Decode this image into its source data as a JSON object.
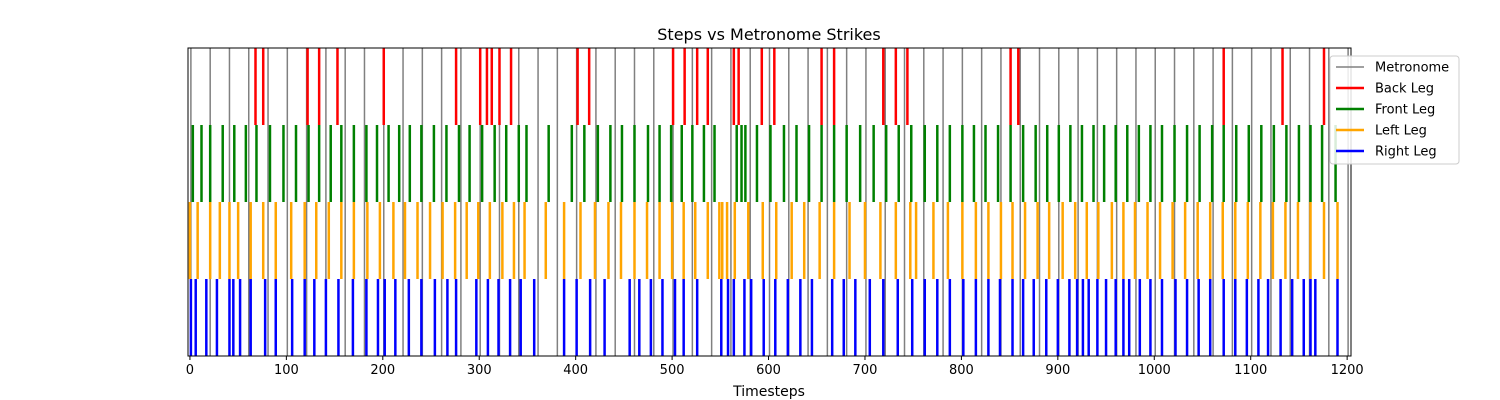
{
  "chart_data": {
    "type": "event-raster",
    "title": "Steps vs Metronome Strikes",
    "xlabel": "Timesteps",
    "ylabel": "",
    "xlim": [
      -2,
      1204
    ],
    "xticks": [
      0,
      100,
      200,
      300,
      400,
      500,
      600,
      700,
      800,
      900,
      1000,
      1100,
      1200
    ],
    "xtick_labels": [
      "0",
      "100",
      "200",
      "300",
      "400",
      "500",
      "600",
      "700",
      "800",
      "900",
      "1000",
      "1100",
      "1200"
    ],
    "grid": false,
    "legend_position": "top-right",
    "series": [
      {
        "name": "Metronome",
        "color": "#808080",
        "band": "full",
        "events": [
          1,
          21,
          41,
          61,
          81,
          101,
          121,
          141,
          161,
          181,
          201,
          221,
          241,
          261,
          281,
          301,
          321,
          341,
          361,
          381,
          401,
          421,
          441,
          461,
          481,
          501,
          521,
          541,
          561,
          581,
          601,
          621,
          641,
          661,
          681,
          701,
          721,
          741,
          761,
          781,
          801,
          821,
          841,
          861,
          881,
          901,
          921,
          941,
          961,
          981,
          1001,
          1021,
          1041,
          1061,
          1081,
          1101,
          1121,
          1141,
          1161,
          1181,
          1201
        ]
      },
      {
        "name": "Back Leg",
        "color": "#ff0000",
        "band": 3,
        "events": [
          68,
          76,
          122,
          134,
          153,
          201,
          276,
          301,
          308,
          313,
          321,
          333,
          402,
          414,
          501,
          513,
          526,
          537,
          564,
          569,
          593,
          606,
          655,
          668,
          719,
          732,
          744,
          851,
          859,
          1072,
          1133,
          1176
        ]
      },
      {
        "name": "Front Leg",
        "color": "#008000",
        "band": 2,
        "events": [
          3,
          12,
          21,
          34,
          46,
          58,
          69,
          83,
          97,
          110,
          123,
          134,
          146,
          157,
          170,
          183,
          194,
          206,
          217,
          228,
          240,
          253,
          266,
          279,
          290,
          303,
          316,
          328,
          341,
          349,
          372,
          396,
          409,
          423,
          436,
          448,
          461,
          475,
          487,
          499,
          510,
          521,
          533,
          544,
          567,
          572,
          576,
          588,
          602,
          616,
          629,
          642,
          655,
          668,
          681,
          695,
          709,
          722,
          735,
          748,
          762,
          775,
          788,
          801,
          813,
          825,
          838,
          851,
          864,
          877,
          889,
          901,
          913,
          925,
          937,
          948,
          960,
          972,
          984,
          996,
          1008,
          1021,
          1034,
          1047,
          1060,
          1072,
          1085,
          1098,
          1111,
          1124,
          1137,
          1150,
          1162,
          1174,
          1188
        ]
      },
      {
        "name": "Left Leg",
        "color": "#ffa500",
        "band": 1,
        "events": [
          0,
          8,
          21,
          31,
          41,
          50,
          63,
          76,
          89,
          105,
          119,
          131,
          144,
          157,
          170,
          184,
          197,
          211,
          223,
          236,
          249,
          262,
          275,
          287,
          299,
          311,
          324,
          336,
          347,
          369,
          388,
          405,
          420,
          434,
          447,
          461,
          474,
          487,
          500,
          512,
          524,
          537,
          549,
          552,
          557,
          565,
          579,
          594,
          608,
          624,
          637,
          653,
          668,
          684,
          700,
          716,
          732,
          747,
          753,
          771,
          786,
          801,
          815,
          828,
          841,
          853,
          866,
          879,
          891,
          905,
          918,
          930,
          942,
          956,
          968,
          980,
          993,
          1006,
          1019,
          1032,
          1045,
          1058,
          1071,
          1084,
          1097,
          1110,
          1123,
          1136,
          1149,
          1162,
          1176,
          1190
        ]
      },
      {
        "name": "Right Leg",
        "color": "#0000ff",
        "band": 0,
        "events": [
          1,
          6,
          17,
          28,
          41,
          45,
          52,
          63,
          78,
          89,
          106,
          119,
          129,
          141,
          154,
          169,
          183,
          195,
          202,
          213,
          227,
          240,
          254,
          267,
          276,
          297,
          309,
          320,
          332,
          343,
          357,
          388,
          401,
          415,
          430,
          456,
          466,
          478,
          490,
          503,
          512,
          526,
          551,
          558,
          564,
          575,
          582,
          595,
          607,
          620,
          633,
          645,
          666,
          678,
          690,
          705,
          719,
          734,
          749,
          762,
          775,
          788,
          802,
          815,
          828,
          840,
          853,
          864,
          875,
          888,
          900,
          912,
          920,
          926,
          932,
          941,
          950,
          960,
          968,
          974,
          985,
          996,
          1008,
          1022,
          1034,
          1046,
          1058,
          1072,
          1084,
          1096,
          1108,
          1118,
          1131,
          1143,
          1155,
          1162,
          1167,
          1190
        ]
      }
    ]
  }
}
